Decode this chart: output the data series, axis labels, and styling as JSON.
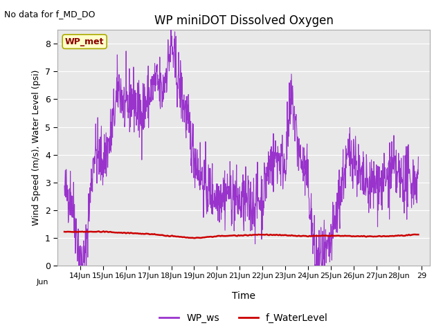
{
  "title": "WP miniDOT Dissolved Oxygen",
  "no_data_text": "No data for f_MD_DO",
  "xlabel": "Time",
  "ylabel": "Wind Speed (m/s), Water Level (psi)",
  "ylim": [
    0.0,
    8.5
  ],
  "yticks": [
    0.0,
    1.0,
    2.0,
    3.0,
    4.0,
    5.0,
    6.0,
    7.0,
    8.0
  ],
  "wp_ws_color": "#9933cc",
  "f_waterlevel_color": "#cc0000",
  "wp_ws_lw": 0.8,
  "f_waterlevel_lw": 1.8,
  "legend_label_ws": "WP_ws",
  "legend_label_wl": "f_WaterLevel",
  "annotation_text": "WP_met",
  "annotation_color": "#8b0000",
  "annotation_bg": "#ffffcc",
  "background_color": "#e8e8e8",
  "tick_days": [
    14,
    15,
    16,
    17,
    18,
    19,
    20,
    21,
    22,
    23,
    24,
    25,
    26,
    27,
    28,
    29
  ]
}
